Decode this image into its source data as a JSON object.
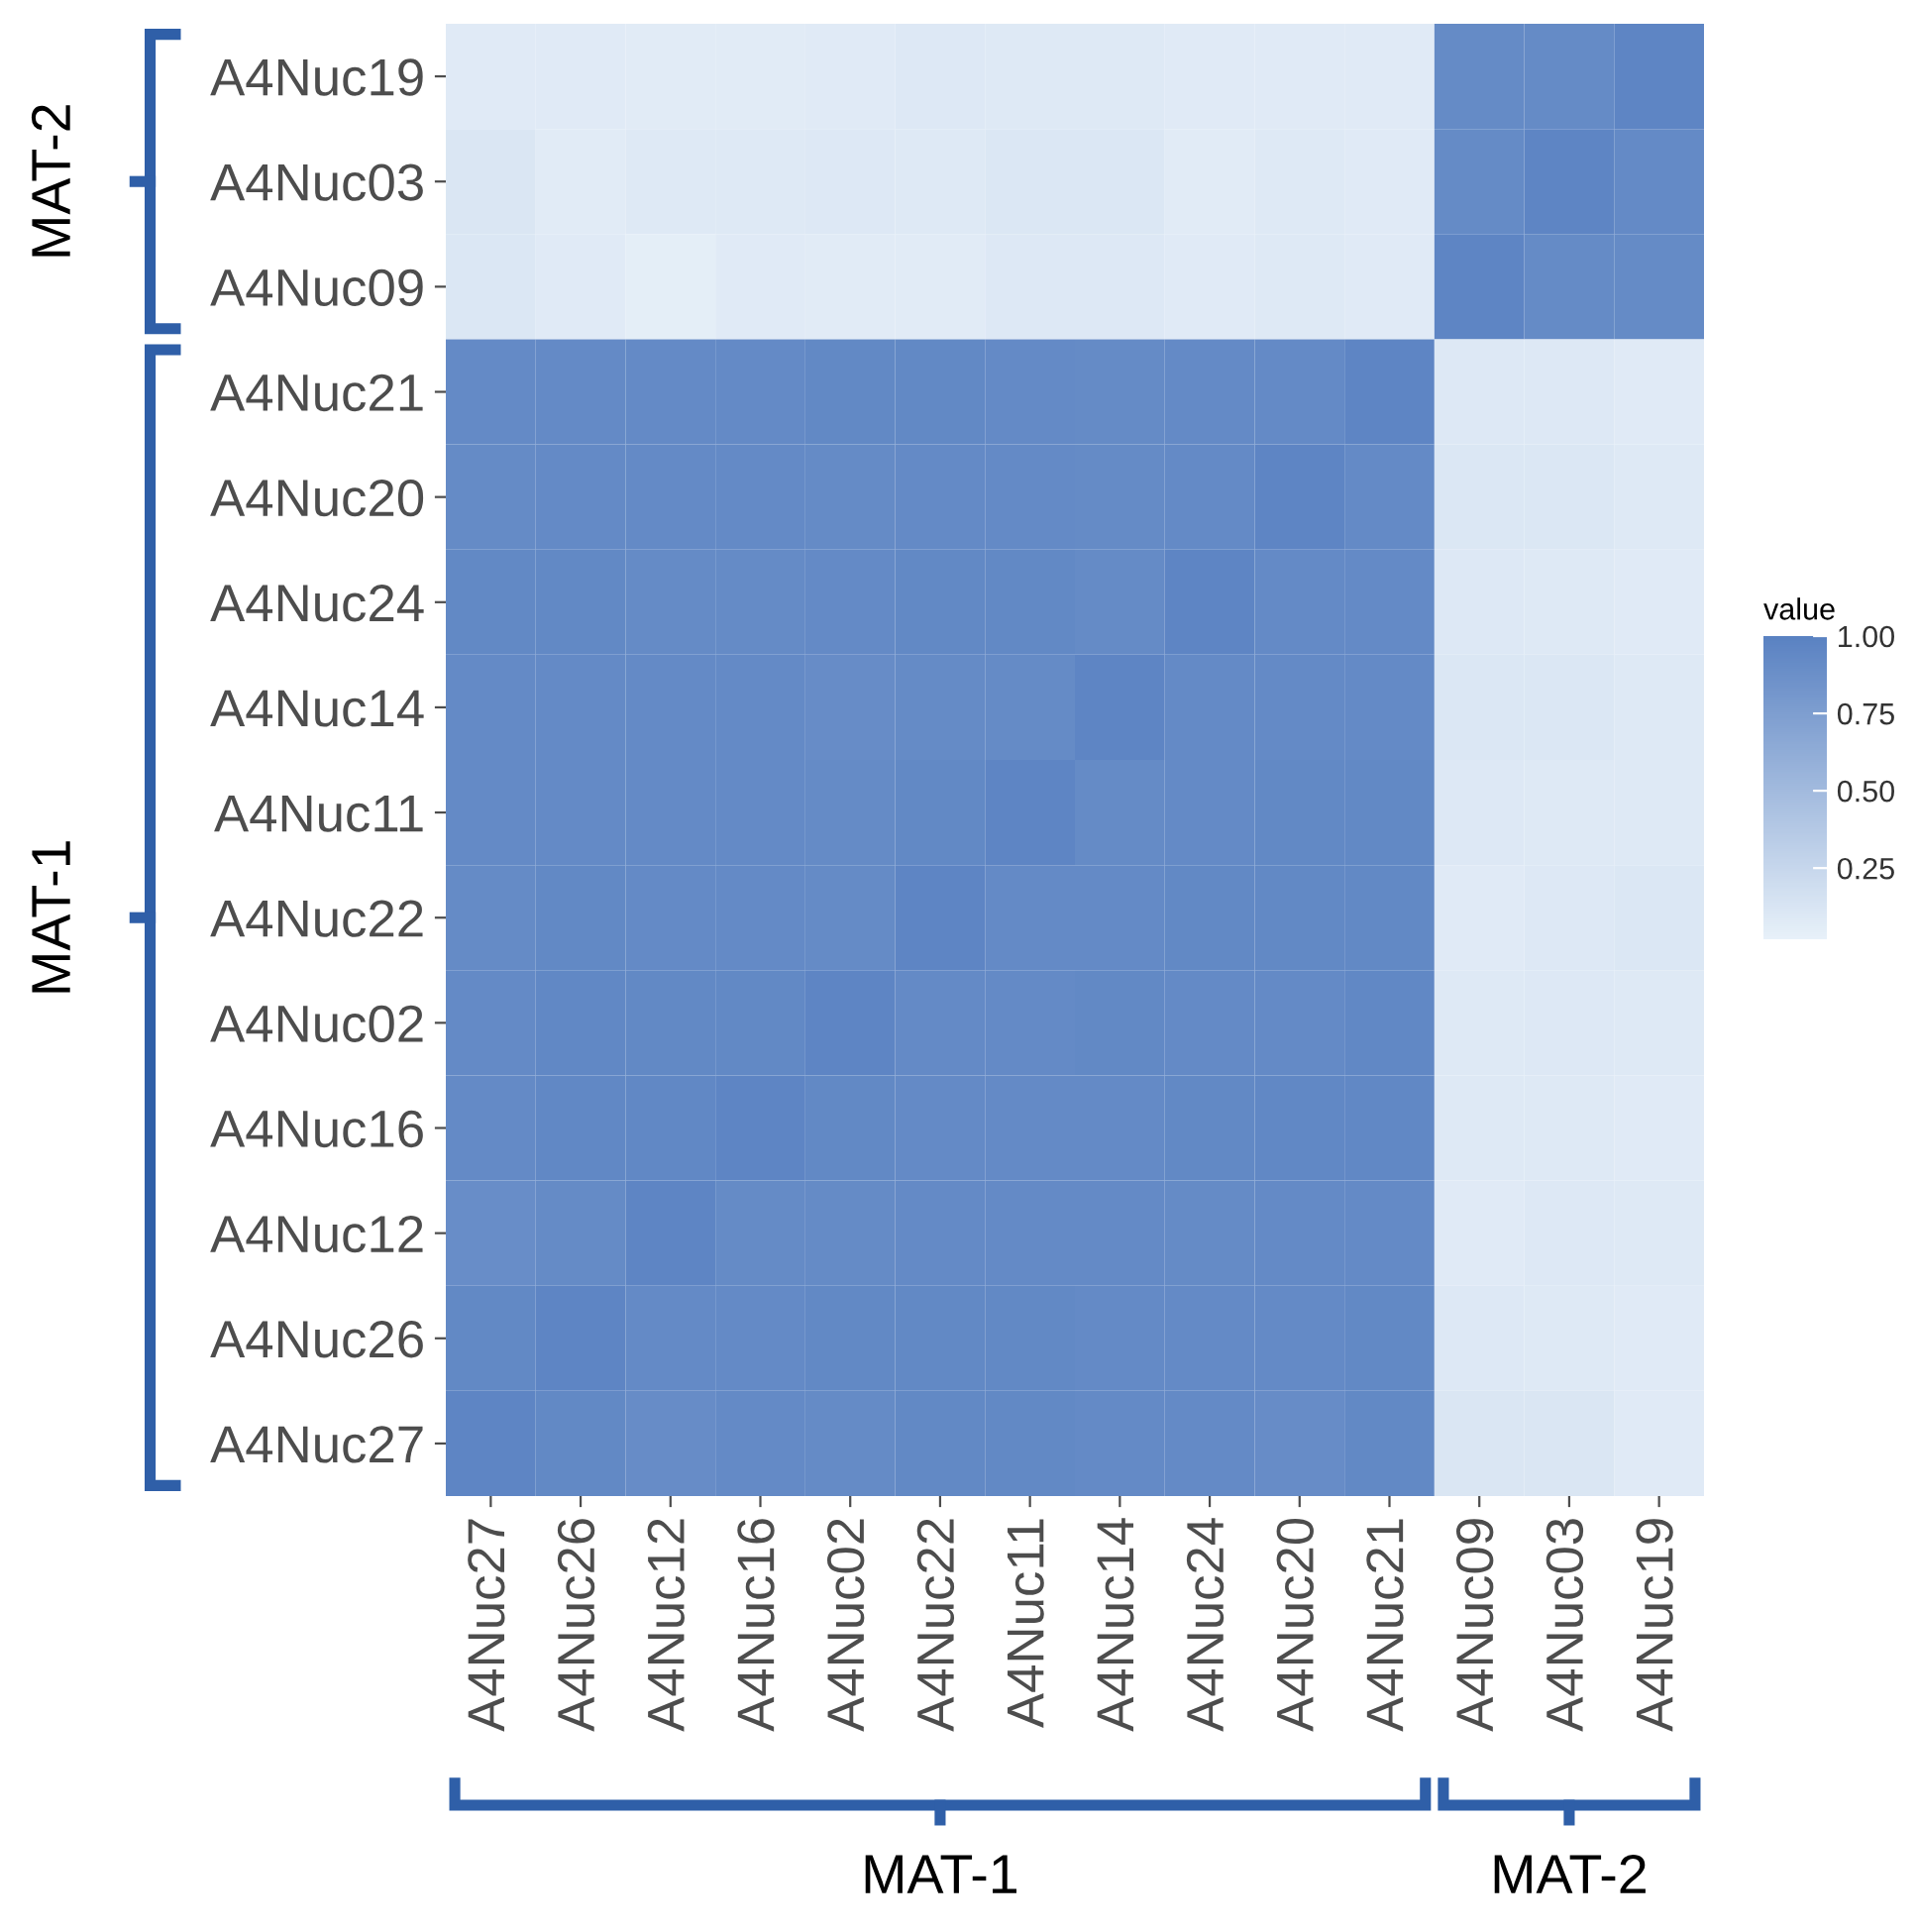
{
  "chart_data": {
    "type": "heatmap",
    "clabel": "value",
    "clim": [
      0.02,
      1.0
    ],
    "cticks": [
      {
        "value": 0.25,
        "label": "0.25"
      },
      {
        "value": 0.5,
        "label": "0.50"
      },
      {
        "value": 0.75,
        "label": "0.75"
      },
      {
        "value": 1.0,
        "label": "1.00"
      }
    ],
    "colors": [
      "#e8f1f9",
      "#5a82c2"
    ],
    "categories": [
      "A4Nuc27",
      "A4Nuc26",
      "A4Nuc12",
      "A4Nuc16",
      "A4Nuc02",
      "A4Nuc22",
      "A4Nuc11",
      "A4Nuc14",
      "A4Nuc24",
      "A4Nuc20",
      "A4Nuc21",
      "A4Nuc09",
      "A4Nuc03",
      "A4Nuc19"
    ],
    "y_categories": [
      "A4Nuc19",
      "A4Nuc03",
      "A4Nuc09",
      "A4Nuc21",
      "A4Nuc20",
      "A4Nuc24",
      "A4Nuc14",
      "A4Nuc11",
      "A4Nuc22",
      "A4Nuc02",
      "A4Nuc16",
      "A4Nuc12",
      "A4Nuc26",
      "A4Nuc27"
    ],
    "cells": [
      [
        0.08,
        0.08,
        0.07,
        0.07,
        0.08,
        0.1,
        0.09,
        0.09,
        0.08,
        0.08,
        0.08,
        0.92,
        0.92,
        0.97
      ],
      [
        0.12,
        0.07,
        0.09,
        0.09,
        0.1,
        0.09,
        0.11,
        0.11,
        0.07,
        0.09,
        0.08,
        0.92,
        0.97,
        0.93
      ],
      [
        0.11,
        0.08,
        0.05,
        0.08,
        0.07,
        0.07,
        0.1,
        0.1,
        0.08,
        0.09,
        0.08,
        0.97,
        0.92,
        0.92
      ],
      [
        0.93,
        0.93,
        0.93,
        0.93,
        0.94,
        0.94,
        0.93,
        0.92,
        0.93,
        0.93,
        0.97,
        0.1,
        0.1,
        0.08
      ],
      [
        0.92,
        0.93,
        0.93,
        0.93,
        0.92,
        0.93,
        0.93,
        0.92,
        0.93,
        0.97,
        0.93,
        0.11,
        0.11,
        0.09
      ],
      [
        0.94,
        0.94,
        0.92,
        0.92,
        0.93,
        0.94,
        0.94,
        0.92,
        0.97,
        0.93,
        0.93,
        0.1,
        0.09,
        0.08
      ],
      [
        0.93,
        0.93,
        0.93,
        0.93,
        0.91,
        0.92,
        0.92,
        0.97,
        0.93,
        0.93,
        0.93,
        0.11,
        0.11,
        0.09
      ],
      [
        0.93,
        0.93,
        0.93,
        0.93,
        0.92,
        0.94,
        0.97,
        0.92,
        0.93,
        0.94,
        0.94,
        0.1,
        0.09,
        0.09
      ],
      [
        0.92,
        0.94,
        0.93,
        0.93,
        0.92,
        0.97,
        0.93,
        0.93,
        0.94,
        0.94,
        0.94,
        0.08,
        0.1,
        0.11
      ],
      [
        0.93,
        0.95,
        0.94,
        0.94,
        0.97,
        0.93,
        0.93,
        0.94,
        0.93,
        0.93,
        0.95,
        0.09,
        0.1,
        0.09
      ],
      [
        0.93,
        0.95,
        0.95,
        0.97,
        0.94,
        0.93,
        0.93,
        0.93,
        0.94,
        0.95,
        0.95,
        0.09,
        0.09,
        0.08
      ],
      [
        0.9,
        0.92,
        0.97,
        0.92,
        0.92,
        0.93,
        0.93,
        0.93,
        0.92,
        0.93,
        0.93,
        0.08,
        0.1,
        0.09
      ],
      [
        0.94,
        0.97,
        0.93,
        0.93,
        0.94,
        0.94,
        0.94,
        0.93,
        0.93,
        0.93,
        0.94,
        0.1,
        0.09,
        0.08
      ],
      [
        0.97,
        0.94,
        0.91,
        0.93,
        0.92,
        0.94,
        0.94,
        0.93,
        0.93,
        0.91,
        0.94,
        0.12,
        0.12,
        0.08
      ]
    ],
    "annotations": [
      "MAT-2",
      "MAT-1",
      "MAT-1",
      "MAT-2"
    ]
  }
}
